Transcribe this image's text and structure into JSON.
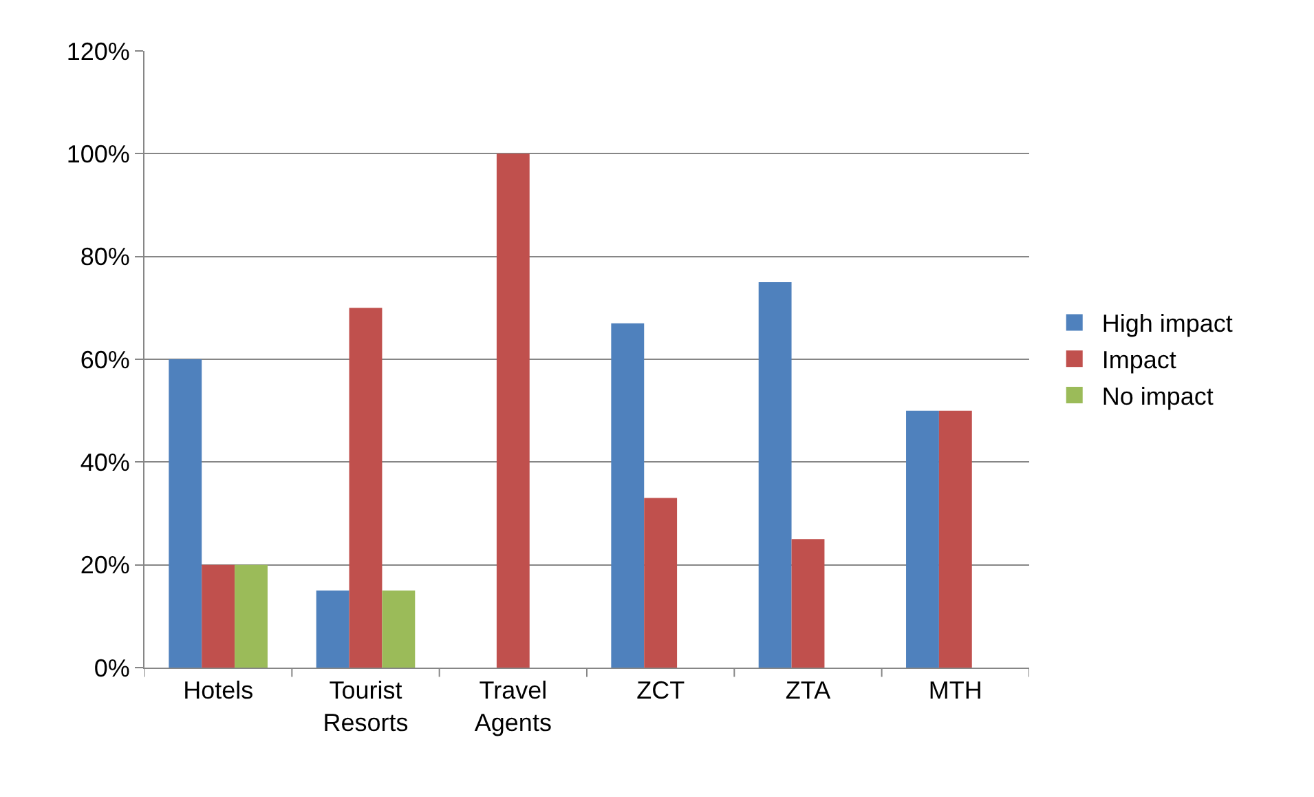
{
  "chart_data": {
    "type": "bar",
    "categories": [
      "Hotels",
      "Tourist Resorts",
      "Travel Agents",
      "ZCT",
      "ZTA",
      "MTH"
    ],
    "series": [
      {
        "name": "High impact",
        "color": "#4f81bd",
        "values": [
          60,
          15,
          0,
          67,
          75,
          50
        ]
      },
      {
        "name": "Impact",
        "color": "#c0504d",
        "values": [
          20,
          70,
          100,
          33,
          25,
          50
        ]
      },
      {
        "name": "No impact",
        "color": "#9bbb59",
        "values": [
          20,
          15,
          0,
          0,
          0,
          0
        ]
      }
    ],
    "ylim": [
      0,
      120
    ],
    "yticks": [
      {
        "value": 0,
        "label": "0%"
      },
      {
        "value": 20,
        "label": "20%"
      },
      {
        "value": 40,
        "label": "40%"
      },
      {
        "value": 60,
        "label": "60%"
      },
      {
        "value": 80,
        "label": "80%"
      },
      {
        "value": 100,
        "label": "100%"
      },
      {
        "value": 120,
        "label": "120%"
      }
    ],
    "grid": "y",
    "legend": "right"
  }
}
